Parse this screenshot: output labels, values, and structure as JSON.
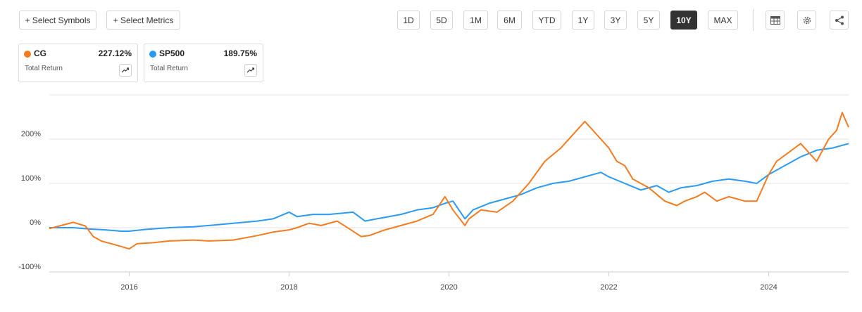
{
  "toolbar": {
    "select_symbols": "+ Select Symbols",
    "select_metrics": "+ Select Metrics",
    "ranges": [
      "1D",
      "5D",
      "1M",
      "6M",
      "YTD",
      "1Y",
      "3Y",
      "5Y",
      "10Y",
      "MAX"
    ],
    "active_range": "10Y",
    "icons": [
      "table-icon",
      "gear-icon",
      "share-icon"
    ]
  },
  "cards": [
    {
      "symbol": "CG",
      "value": "227.12%",
      "metric": "Total Return",
      "color": "#f47b20"
    },
    {
      "symbol": "SP500",
      "value": "189.75%",
      "metric": "Total Return",
      "color": "#2b9af3"
    }
  ],
  "chart_data": {
    "type": "line",
    "title": "",
    "xlabel": "",
    "ylabel": "",
    "yticks": [
      "200%",
      "100%",
      "0%",
      "-100%"
    ],
    "ytick_values": [
      200,
      100,
      0,
      -100
    ],
    "xticks": [
      "2016",
      "2018",
      "2020",
      "2022",
      "2024"
    ],
    "xtick_values": [
      2016,
      2018,
      2020,
      2022,
      2024
    ],
    "xlim": [
      2015.0,
      2025.0
    ],
    "ylim": [
      -100,
      300
    ],
    "grid": "horizontal",
    "series": [
      {
        "name": "CG",
        "color": "#f47b20",
        "x": [
          2015.0,
          2015.15,
          2015.3,
          2015.45,
          2015.55,
          2015.65,
          2015.75,
          2015.85,
          2016.0,
          2016.1,
          2016.3,
          2016.5,
          2016.8,
          2017.0,
          2017.3,
          2017.6,
          2017.8,
          2018.0,
          2018.1,
          2018.25,
          2018.4,
          2018.6,
          2018.75,
          2018.9,
          2019.0,
          2019.2,
          2019.4,
          2019.6,
          2019.8,
          2019.95,
          2020.05,
          2020.2,
          2020.25,
          2020.4,
          2020.6,
          2020.8,
          2021.0,
          2021.2,
          2021.4,
          2021.55,
          2021.7,
          2021.75,
          2021.9,
          2022.0,
          2022.1,
          2022.2,
          2022.3,
          2022.4,
          2022.5,
          2022.7,
          2022.85,
          2022.95,
          2023.1,
          2023.2,
          2023.35,
          2023.5,
          2023.7,
          2023.85,
          2024.0,
          2024.1,
          2024.25,
          2024.4,
          2024.5,
          2024.6,
          2024.75,
          2024.85,
          2024.92,
          2025.0
        ],
        "y": [
          -2,
          5,
          12,
          4,
          -20,
          -30,
          -35,
          -40,
          -48,
          -36,
          -34,
          -30,
          -28,
          -30,
          -28,
          -18,
          -10,
          -5,
          0,
          10,
          5,
          15,
          -2,
          -20,
          -18,
          -5,
          5,
          15,
          30,
          70,
          40,
          5,
          20,
          40,
          35,
          60,
          100,
          150,
          180,
          210,
          240,
          230,
          200,
          180,
          150,
          140,
          110,
          100,
          90,
          60,
          50,
          60,
          70,
          80,
          60,
          70,
          60,
          60,
          120,
          150,
          170,
          190,
          170,
          150,
          200,
          220,
          260,
          227
        ]
      },
      {
        "name": "SP500",
        "color": "#2b9af3",
        "x": [
          2015.0,
          2015.3,
          2015.5,
          2015.7,
          2015.9,
          2016.0,
          2016.2,
          2016.5,
          2016.8,
          2017.0,
          2017.3,
          2017.6,
          2017.8,
          2018.0,
          2018.1,
          2018.3,
          2018.5,
          2018.8,
          2018.95,
          2019.1,
          2019.4,
          2019.6,
          2019.8,
          2019.95,
          2020.05,
          2020.2,
          2020.3,
          2020.5,
          2020.7,
          2020.9,
          2021.1,
          2021.3,
          2021.5,
          2021.7,
          2021.9,
          2022.0,
          2022.2,
          2022.4,
          2022.6,
          2022.75,
          2022.9,
          2023.1,
          2023.3,
          2023.5,
          2023.7,
          2023.85,
          2024.0,
          2024.2,
          2024.4,
          2024.6,
          2024.8,
          2025.0
        ],
        "y": [
          0,
          0,
          -3,
          -5,
          -8,
          -8,
          -4,
          0,
          2,
          5,
          10,
          15,
          20,
          35,
          25,
          30,
          30,
          35,
          15,
          20,
          30,
          40,
          45,
          55,
          60,
          20,
          40,
          55,
          65,
          75,
          90,
          100,
          105,
          115,
          125,
          115,
          100,
          85,
          95,
          80,
          90,
          95,
          105,
          110,
          105,
          100,
          120,
          140,
          160,
          175,
          180,
          190
        ]
      }
    ]
  }
}
